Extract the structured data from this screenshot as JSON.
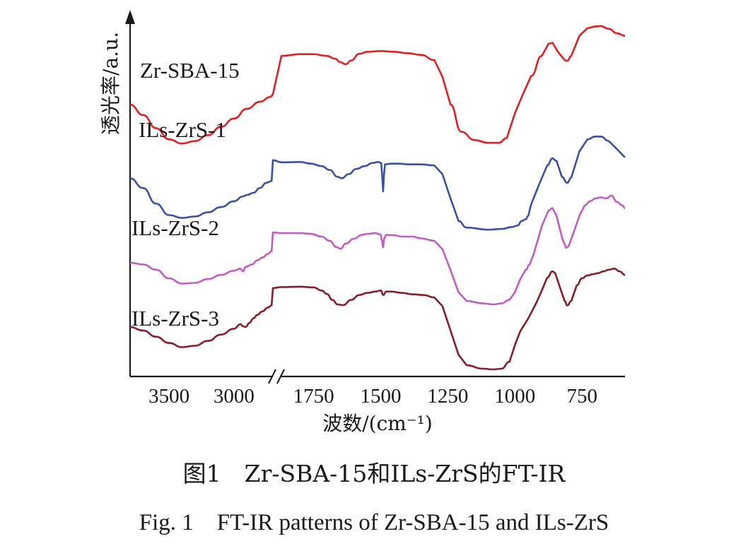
{
  "caption": {
    "cn": "图1　Zr-SBA-15和ILs-ZrS的FT-IR",
    "en": "Fig. 1　FT-IR patterns of Zr-SBA-15 and ILs-ZrS"
  },
  "chart_data": {
    "type": "line",
    "xlabel": "波数/(cm⁻¹)",
    "ylabel": "透光率/a.u.",
    "x_direction": "descending",
    "axis_break": [
      2700,
      1870
    ],
    "x_segments": [
      [
        3800,
        2700
      ],
      [
        1870,
        590
      ]
    ],
    "x_ticks": [
      3500,
      3000,
      1750,
      1500,
      1250,
      1000,
      750
    ],
    "y_ticks": [],
    "grid": false,
    "legend": "inline labels left",
    "series": [
      {
        "name": "Zr-SBA-15",
        "color": "#e02020",
        "points": [
          [
            3800,
            0.76
          ],
          [
            3700,
            0.73
          ],
          [
            3600,
            0.692
          ],
          [
            3500,
            0.66
          ],
          [
            3400,
            0.648
          ],
          [
            3300,
            0.655
          ],
          [
            3200,
            0.672
          ],
          [
            3100,
            0.696
          ],
          [
            3000,
            0.72
          ],
          [
            2900,
            0.748
          ],
          [
            2800,
            0.768
          ],
          [
            2720,
            0.782
          ],
          [
            2710,
            0.785
          ],
          [
            2700,
            0.79
          ],
          [
            1870,
            0.9
          ],
          [
            1800,
            0.905
          ],
          [
            1750,
            0.905
          ],
          [
            1700,
            0.9
          ],
          [
            1670,
            0.892
          ],
          [
            1650,
            0.882
          ],
          [
            1630,
            0.876
          ],
          [
            1610,
            0.887
          ],
          [
            1580,
            0.906
          ],
          [
            1550,
            0.912
          ],
          [
            1500,
            0.914
          ],
          [
            1450,
            0.912
          ],
          [
            1400,
            0.908
          ],
          [
            1350,
            0.903
          ],
          [
            1300,
            0.888
          ],
          [
            1270,
            0.84
          ],
          [
            1240,
            0.76
          ],
          [
            1200,
            0.682
          ],
          [
            1150,
            0.658
          ],
          [
            1100,
            0.65
          ],
          [
            1060,
            0.65
          ],
          [
            1030,
            0.664
          ],
          [
            1000,
            0.735
          ],
          [
            970,
            0.79
          ],
          [
            940,
            0.842
          ],
          [
            900,
            0.9
          ],
          [
            875,
            0.935
          ],
          [
            860,
            0.938
          ],
          [
            840,
            0.912
          ],
          [
            815,
            0.888
          ],
          [
            805,
            0.886
          ],
          [
            790,
            0.9
          ],
          [
            760,
            0.958
          ],
          [
            730,
            0.98
          ],
          [
            700,
            0.985
          ],
          [
            680,
            0.986
          ],
          [
            650,
            0.978
          ],
          [
            620,
            0.965
          ],
          [
            590,
            0.958
          ]
        ]
      },
      {
        "name": "ILs-ZrS-1",
        "color": "#3a50a8",
        "points": [
          [
            3800,
            0.548
          ],
          [
            3700,
            0.52
          ],
          [
            3600,
            0.475
          ],
          [
            3500,
            0.442
          ],
          [
            3400,
            0.434
          ],
          [
            3300,
            0.438
          ],
          [
            3200,
            0.45
          ],
          [
            3100,
            0.465
          ],
          [
            3000,
            0.482
          ],
          [
            2930,
            0.496
          ],
          [
            2900,
            0.5
          ],
          [
            2850,
            0.506
          ],
          [
            2800,
            0.52
          ],
          [
            2750,
            0.535
          ],
          [
            2710,
            0.54
          ],
          [
            2700,
            0.6
          ],
          [
            1870,
            0.594
          ],
          [
            1800,
            0.595
          ],
          [
            1760,
            0.59
          ],
          [
            1720,
            0.583
          ],
          [
            1690,
            0.572
          ],
          [
            1660,
            0.552
          ],
          [
            1645,
            0.548
          ],
          [
            1620,
            0.56
          ],
          [
            1590,
            0.575
          ],
          [
            1560,
            0.583
          ],
          [
            1530,
            0.592
          ],
          [
            1510,
            0.595
          ],
          [
            1498,
            0.592
          ],
          [
            1495,
            0.56
          ],
          [
            1491,
            0.51
          ],
          [
            1488,
            0.555
          ],
          [
            1484,
            0.588
          ],
          [
            1460,
            0.59
          ],
          [
            1430,
            0.59
          ],
          [
            1400,
            0.588
          ],
          [
            1350,
            0.588
          ],
          [
            1300,
            0.585
          ],
          [
            1270,
            0.56
          ],
          [
            1240,
            0.49
          ],
          [
            1210,
            0.425
          ],
          [
            1180,
            0.406
          ],
          [
            1100,
            0.4
          ],
          [
            1050,
            0.402
          ],
          [
            1010,
            0.408
          ],
          [
            990,
            0.412
          ],
          [
            975,
            0.425
          ],
          [
            960,
            0.43
          ],
          [
            950,
            0.44
          ],
          [
            940,
            0.472
          ],
          [
            910,
            0.53
          ],
          [
            880,
            0.585
          ],
          [
            860,
            0.605
          ],
          [
            845,
            0.598
          ],
          [
            825,
            0.552
          ],
          [
            805,
            0.535
          ],
          [
            790,
            0.55
          ],
          [
            760,
            0.625
          ],
          [
            730,
            0.66
          ],
          [
            700,
            0.668
          ],
          [
            680,
            0.668
          ],
          [
            650,
            0.655
          ],
          [
            620,
            0.632
          ],
          [
            590,
            0.608
          ]
        ]
      },
      {
        "name": "ILs-ZrS-2",
        "color": "#c35bc3",
        "points": [
          [
            3800,
            0.305
          ],
          [
            3700,
            0.3
          ],
          [
            3600,
            0.285
          ],
          [
            3500,
            0.26
          ],
          [
            3400,
            0.245
          ],
          [
            3300,
            0.247
          ],
          [
            3200,
            0.258
          ],
          [
            3100,
            0.27
          ],
          [
            3000,
            0.282
          ],
          [
            2950,
            0.288
          ],
          [
            2930,
            0.28
          ],
          [
            2910,
            0.293
          ],
          [
            2860,
            0.3
          ],
          [
            2820,
            0.312
          ],
          [
            2780,
            0.32
          ],
          [
            2740,
            0.33
          ],
          [
            2710,
            0.338
          ],
          [
            2700,
            0.392
          ],
          [
            1870,
            0.39
          ],
          [
            1800,
            0.39
          ],
          [
            1760,
            0.388
          ],
          [
            1720,
            0.38
          ],
          [
            1690,
            0.368
          ],
          [
            1665,
            0.35
          ],
          [
            1650,
            0.345
          ],
          [
            1630,
            0.36
          ],
          [
            1600,
            0.374
          ],
          [
            1570,
            0.385
          ],
          [
            1550,
            0.388
          ],
          [
            1520,
            0.39
          ],
          [
            1500,
            0.386
          ],
          [
            1495,
            0.368
          ],
          [
            1491,
            0.35
          ],
          [
            1487,
            0.375
          ],
          [
            1480,
            0.385
          ],
          [
            1450,
            0.384
          ],
          [
            1420,
            0.38
          ],
          [
            1380,
            0.38
          ],
          [
            1350,
            0.375
          ],
          [
            1300,
            0.368
          ],
          [
            1270,
            0.344
          ],
          [
            1240,
            0.284
          ],
          [
            1210,
            0.22
          ],
          [
            1180,
            0.195
          ],
          [
            1120,
            0.188
          ],
          [
            1080,
            0.185
          ],
          [
            1050,
            0.188
          ],
          [
            1020,
            0.198
          ],
          [
            1000,
            0.22
          ],
          [
            980,
            0.258
          ],
          [
            960,
            0.285
          ],
          [
            945,
            0.3
          ],
          [
            930,
            0.33
          ],
          [
            900,
            0.41
          ],
          [
            875,
            0.455
          ],
          [
            860,
            0.462
          ],
          [
            845,
            0.44
          ],
          [
            825,
            0.378
          ],
          [
            810,
            0.348
          ],
          [
            800,
            0.352
          ],
          [
            780,
            0.395
          ],
          [
            760,
            0.44
          ],
          [
            740,
            0.47
          ],
          [
            720,
            0.482
          ],
          [
            700,
            0.49
          ],
          [
            680,
            0.493
          ],
          [
            660,
            0.49
          ],
          [
            640,
            0.498
          ],
          [
            620,
            0.48
          ],
          [
            600,
            0.47
          ],
          [
            590,
            0.462
          ]
        ]
      },
      {
        "name": "ILs-ZrS-3",
        "color": "#8a1c2a",
        "points": [
          [
            3800,
            0.12
          ],
          [
            3700,
            0.11
          ],
          [
            3600,
            0.092
          ],
          [
            3500,
            0.074
          ],
          [
            3400,
            0.062
          ],
          [
            3300,
            0.066
          ],
          [
            3200,
            0.08
          ],
          [
            3100,
            0.098
          ],
          [
            3000,
            0.115
          ],
          [
            2950,
            0.128
          ],
          [
            2930,
            0.122
          ],
          [
            2910,
            0.12
          ],
          [
            2880,
            0.132
          ],
          [
            2850,
            0.145
          ],
          [
            2820,
            0.155
          ],
          [
            2780,
            0.165
          ],
          [
            2740,
            0.176
          ],
          [
            2710,
            0.182
          ],
          [
            2700,
            0.232
          ],
          [
            1870,
            0.235
          ],
          [
            1800,
            0.236
          ],
          [
            1750,
            0.234
          ],
          [
            1720,
            0.225
          ],
          [
            1700,
            0.215
          ],
          [
            1680,
            0.198
          ],
          [
            1660,
            0.185
          ],
          [
            1640,
            0.183
          ],
          [
            1610,
            0.198
          ],
          [
            1580,
            0.212
          ],
          [
            1550,
            0.218
          ],
          [
            1520,
            0.222
          ],
          [
            1500,
            0.225
          ],
          [
            1490,
            0.212
          ],
          [
            1480,
            0.222
          ],
          [
            1460,
            0.222
          ],
          [
            1420,
            0.218
          ],
          [
            1380,
            0.214
          ],
          [
            1340,
            0.212
          ],
          [
            1300,
            0.205
          ],
          [
            1270,
            0.18
          ],
          [
            1240,
            0.11
          ],
          [
            1210,
            0.04
          ],
          [
            1180,
            0.01
          ],
          [
            1120,
            0.0
          ],
          [
            1080,
            -0.002
          ],
          [
            1050,
            0.0
          ],
          [
            1020,
            0.02
          ],
          [
            1000,
            0.068
          ],
          [
            980,
            0.108
          ],
          [
            950,
            0.145
          ],
          [
            920,
            0.19
          ],
          [
            900,
            0.225
          ],
          [
            880,
            0.262
          ],
          [
            860,
            0.28
          ],
          [
            850,
            0.275
          ],
          [
            835,
            0.24
          ],
          [
            815,
            0.195
          ],
          [
            805,
            0.182
          ],
          [
            790,
            0.195
          ],
          [
            770,
            0.24
          ],
          [
            750,
            0.26
          ],
          [
            730,
            0.268
          ],
          [
            710,
            0.272
          ],
          [
            690,
            0.275
          ],
          [
            670,
            0.28
          ],
          [
            650,
            0.285
          ],
          [
            630,
            0.288
          ],
          [
            610,
            0.28
          ],
          [
            590,
            0.27
          ]
        ]
      }
    ]
  }
}
